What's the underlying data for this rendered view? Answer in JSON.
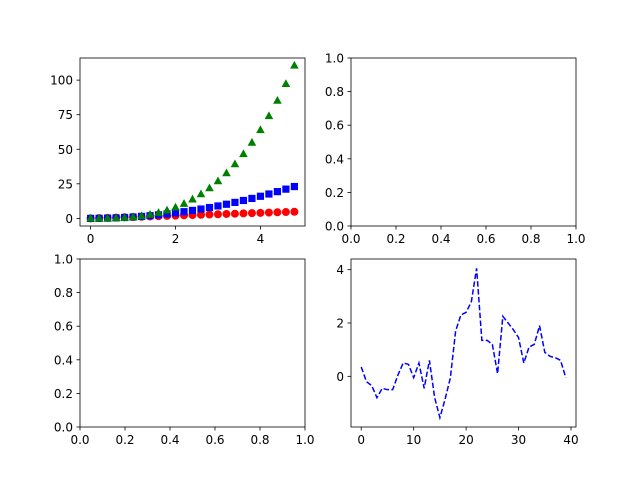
{
  "chart_data": [
    {
      "id": "top-left",
      "type": "scatter",
      "xlim": [
        -0.25,
        5.05
      ],
      "ylim": [
        -5.5,
        116.0
      ],
      "xticks": [
        0,
        2,
        4
      ],
      "yticks": [
        0,
        25,
        50,
        75,
        100
      ],
      "x": [
        0,
        0.2,
        0.4,
        0.6,
        0.8,
        1.0,
        1.2,
        1.4,
        1.6,
        1.8,
        2.0,
        2.2,
        2.4,
        2.6,
        2.8,
        3.0,
        3.2,
        3.4,
        3.6,
        3.8,
        4.0,
        4.2,
        4.4,
        4.6,
        4.8
      ],
      "series": [
        {
          "values": [
            0,
            0.2,
            0.4,
            0.6,
            0.8,
            1.0,
            1.2,
            1.4,
            1.6,
            1.8,
            2.0,
            2.2,
            2.4,
            2.6,
            2.8,
            3.0,
            3.2,
            3.4,
            3.6,
            3.8,
            4.0,
            4.2,
            4.4,
            4.6,
            4.8
          ],
          "color": "#ff0000",
          "marker": "circle"
        },
        {
          "values": [
            0,
            0.04,
            0.16,
            0.36,
            0.64,
            1.0,
            1.44,
            1.96,
            2.56,
            3.24,
            4.0,
            4.84,
            5.76,
            6.76,
            7.84,
            9.0,
            10.24,
            11.56,
            12.96,
            14.44,
            16.0,
            17.64,
            19.36,
            21.16,
            23.04
          ],
          "color": "#0000ff",
          "marker": "square"
        },
        {
          "values": [
            0,
            0.008,
            0.064,
            0.216,
            0.512,
            1.0,
            1.728,
            2.744,
            4.096,
            5.832,
            8.0,
            10.648,
            13.824,
            17.576,
            21.952,
            27.0,
            32.768,
            39.304,
            46.656,
            54.872,
            64.0,
            74.088,
            85.184,
            97.336,
            110.592
          ],
          "color": "#008000",
          "marker": "triangle"
        }
      ]
    },
    {
      "id": "top-right",
      "type": "line",
      "xlim": [
        0,
        1
      ],
      "ylim": [
        0,
        1
      ],
      "xticks": [
        "0.0",
        "0.2",
        "0.4",
        "0.6",
        "0.8",
        "1.0"
      ],
      "yticks": [
        "0.0",
        "0.2",
        "0.4",
        "0.6",
        "0.8",
        "1.0"
      ],
      "series": []
    },
    {
      "id": "bottom-left",
      "type": "line",
      "xlim": [
        0,
        1
      ],
      "ylim": [
        0,
        1
      ],
      "xticks": [
        "0.0",
        "0.2",
        "0.4",
        "0.6",
        "0.8",
        "1.0"
      ],
      "yticks": [
        "0.0",
        "0.2",
        "0.4",
        "0.6",
        "0.8",
        "1.0"
      ],
      "series": []
    },
    {
      "id": "bottom-right",
      "type": "line",
      "xlim": [
        -1.95,
        40.95
      ],
      "ylim": [
        -1.9,
        4.4
      ],
      "xticks": [
        0,
        10,
        20,
        30,
        40
      ],
      "yticks": [
        0,
        2,
        4
      ],
      "x": [
        0,
        1,
        2,
        3,
        4,
        5,
        6,
        7,
        8,
        9,
        10,
        11,
        12,
        13,
        14,
        15,
        16,
        17,
        18,
        19,
        20,
        21,
        22,
        23,
        24,
        25,
        26,
        27,
        28,
        29,
        30,
        31,
        32,
        33,
        34,
        35,
        36,
        37,
        38,
        39
      ],
      "series": [
        {
          "values": [
            0.35,
            -0.2,
            -0.35,
            -0.8,
            -0.45,
            -0.5,
            -0.5,
            0.05,
            0.5,
            0.45,
            -0.05,
            0.5,
            -0.45,
            0.6,
            -0.8,
            -1.55,
            -0.85,
            -0.05,
            1.7,
            2.3,
            2.4,
            2.8,
            4.05,
            1.35,
            1.35,
            1.2,
            0.1,
            2.25,
            2.0,
            1.75,
            1.45,
            0.5,
            1.1,
            1.2,
            1.9,
            0.9,
            0.75,
            0.7,
            0.6,
            -0.05
          ],
          "color": "#0000ff",
          "style": "dashed"
        }
      ]
    }
  ]
}
